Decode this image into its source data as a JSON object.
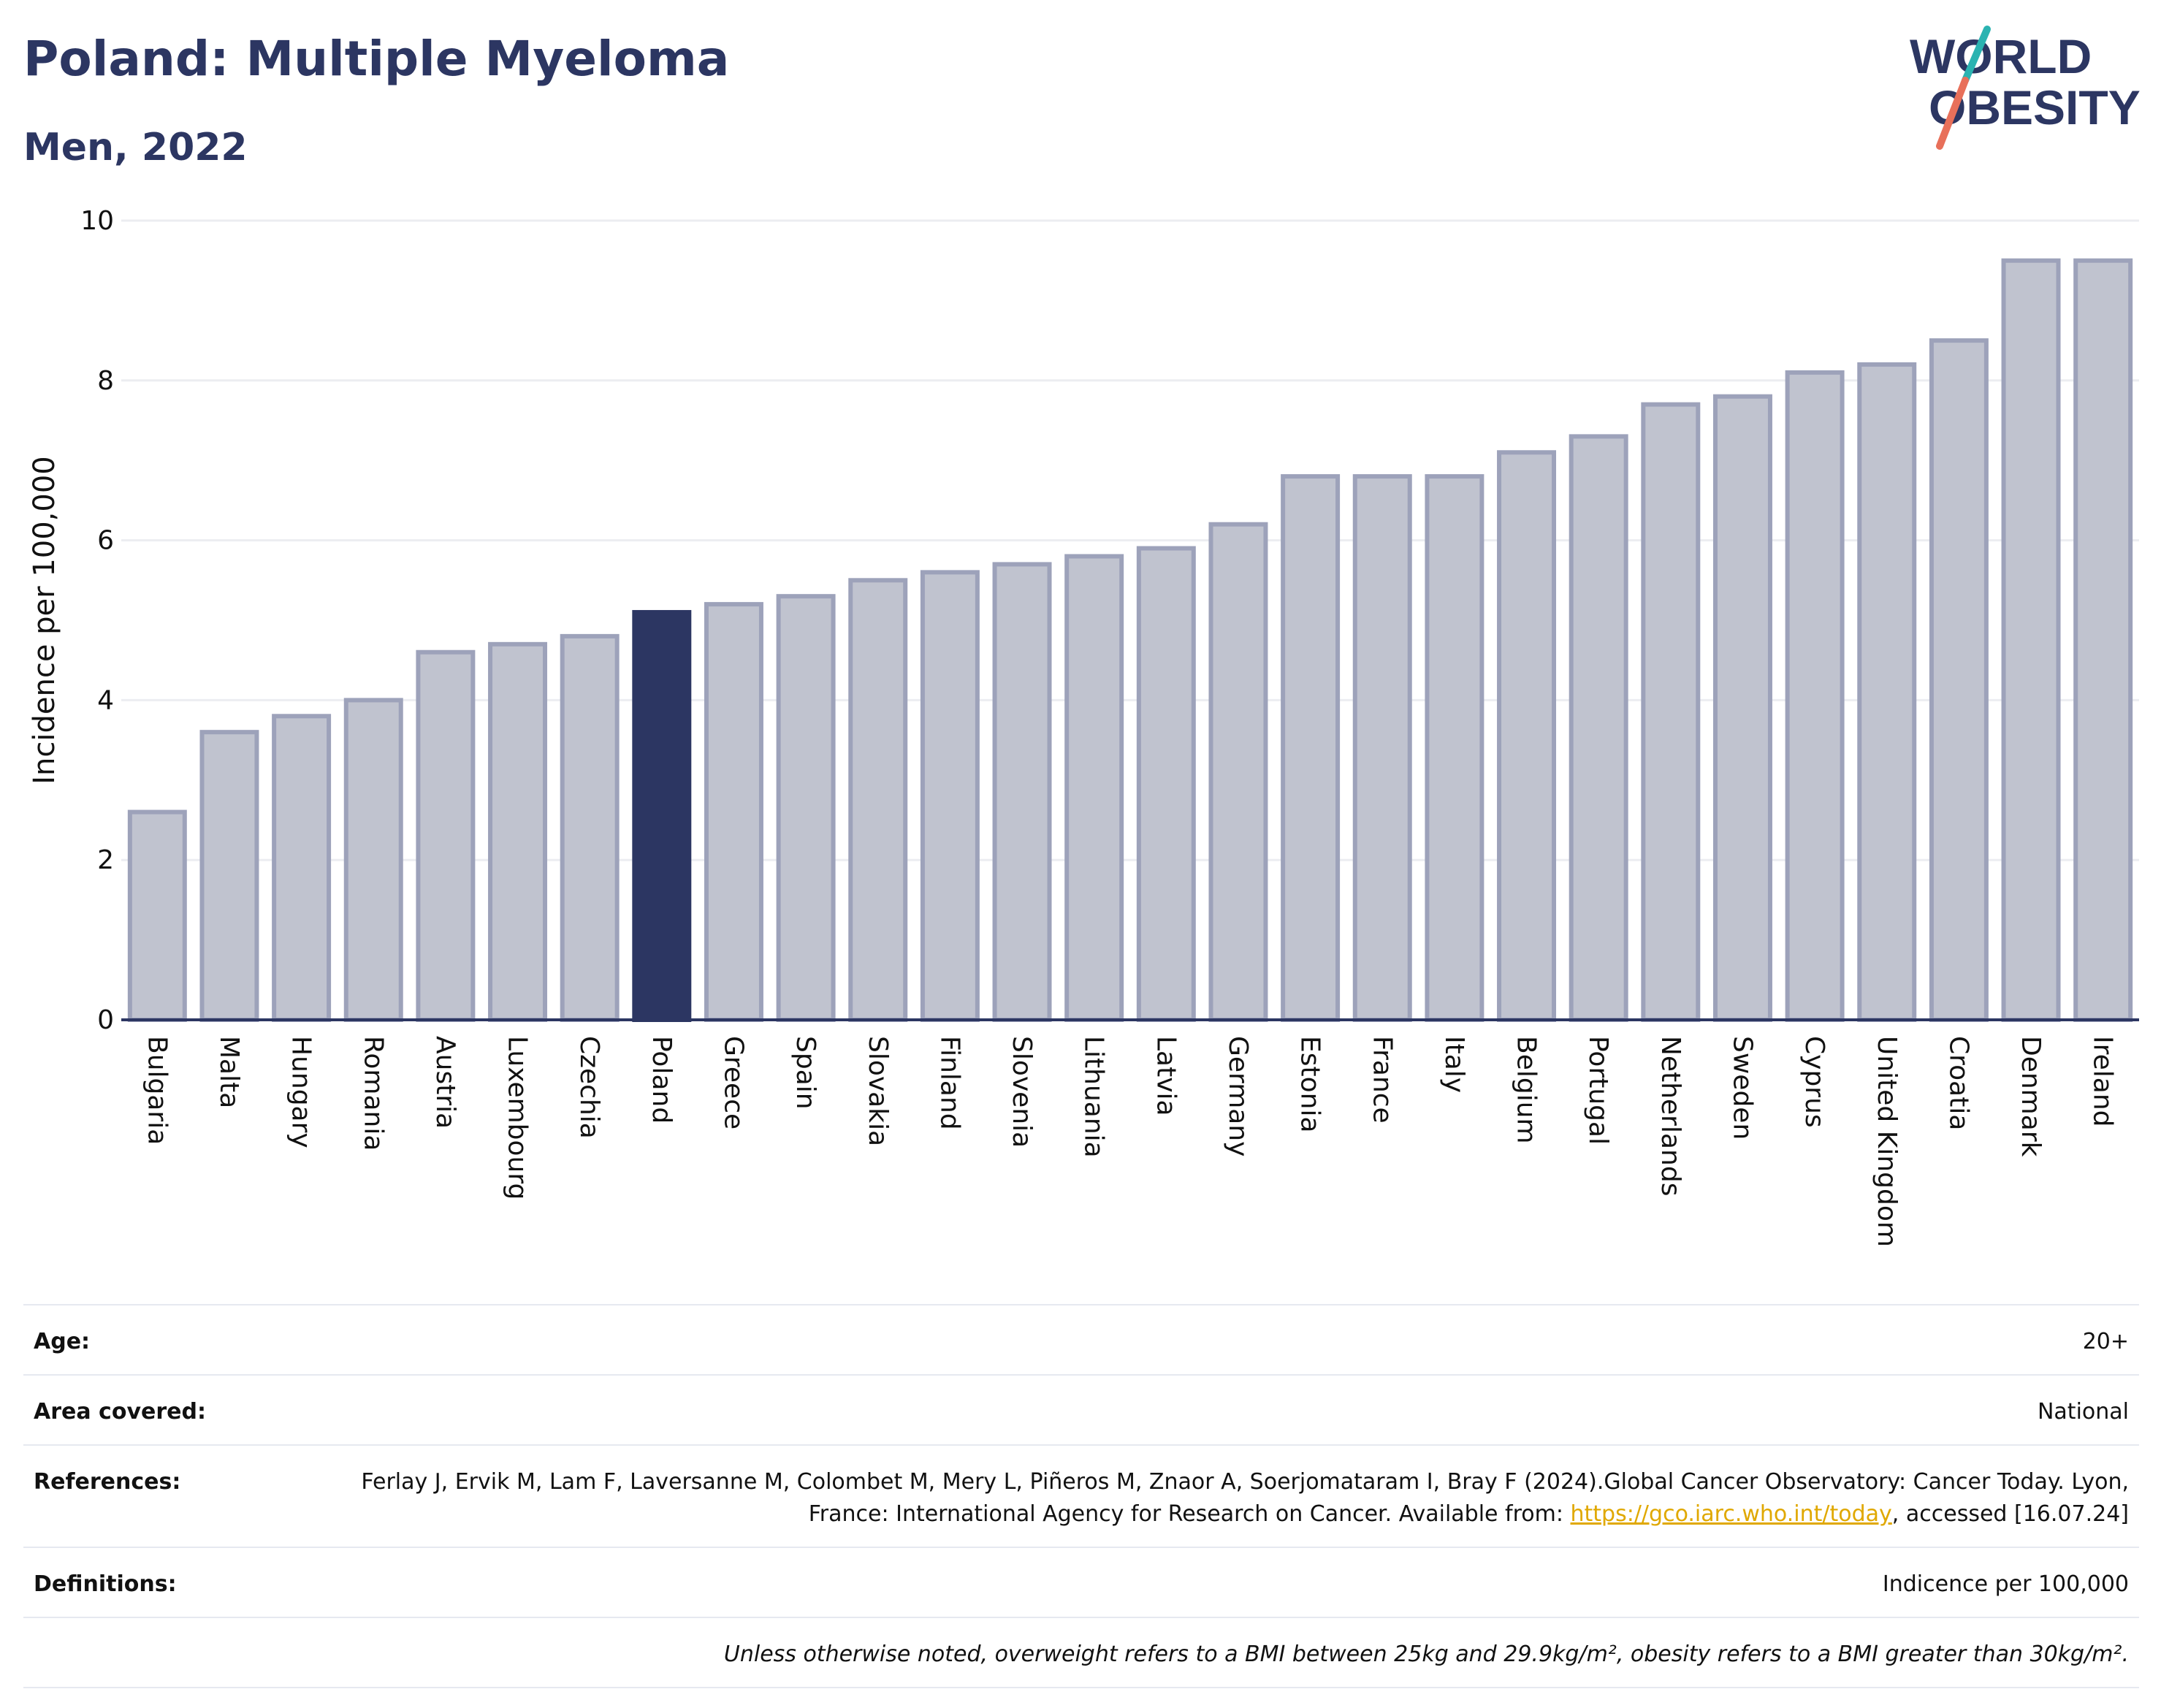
{
  "header": {
    "title": "Poland: Multiple Myeloma",
    "subtitle": "Men, 2022"
  },
  "logo": {
    "line1": "WORLD",
    "line2": "OBESITY",
    "colors": {
      "text": "#2c3662",
      "slash_top": "#2bb3b1",
      "slash_bottom": "#e8705a"
    }
  },
  "chart_data": {
    "type": "bar",
    "title": "",
    "xlabel": "",
    "ylabel": "Incidence per 100,000",
    "ylim": [
      0,
      10
    ],
    "yticks": [
      0,
      2,
      4,
      6,
      8,
      10
    ],
    "grid": true,
    "categories": [
      "Bulgaria",
      "Malta",
      "Hungary",
      "Romania",
      "Austria",
      "Luxembourg",
      "Czechia",
      "Poland",
      "Greece",
      "Spain",
      "Slovakia",
      "Finland",
      "Slovenia",
      "Lithuania",
      "Latvia",
      "Germany",
      "Estonia",
      "France",
      "Italy",
      "Belgium",
      "Portugal",
      "Netherlands",
      "Sweden",
      "Cyprus",
      "United Kingdom",
      "Croatia",
      "Denmark",
      "Ireland"
    ],
    "values": [
      2.6,
      3.6,
      3.8,
      4.0,
      4.6,
      4.7,
      4.8,
      5.1,
      5.2,
      5.3,
      5.5,
      5.6,
      5.7,
      5.8,
      5.9,
      6.2,
      6.8,
      6.8,
      6.8,
      7.1,
      7.3,
      7.7,
      7.8,
      8.1,
      8.2,
      8.5,
      9.5,
      9.5
    ],
    "highlight": "Poland",
    "colors": {
      "bar": "#c0c3cf",
      "bar_edge": "#9da2ba",
      "highlight": "#2c3662",
      "axis": "#2c3662",
      "grid": "#ecedf1"
    }
  },
  "meta": {
    "age_label": "Age:",
    "age_value": "20+",
    "area_label": "Area covered:",
    "area_value": "National",
    "references_label": "References:",
    "references_text": "Ferlay J, Ervik M, Lam F, Laversanne M, Colombet M, Mery L, Piñeros M, Znaor A, Soerjomataram I, Bray F (2024).Global Cancer Observatory: Cancer Today. Lyon, France: International Agency for Research on Cancer. Available from: ",
    "references_link": "https://gco.iarc.who.int/today",
    "references_suffix": ", accessed [16.07.24]",
    "definitions_label": "Definitions:",
    "definitions_value": "Indicence per 100,000",
    "note": "Unless otherwise noted, overweight refers to a BMI between 25kg and 29.9kg/m², obesity refers to a BMI greater than 30kg/m²."
  }
}
